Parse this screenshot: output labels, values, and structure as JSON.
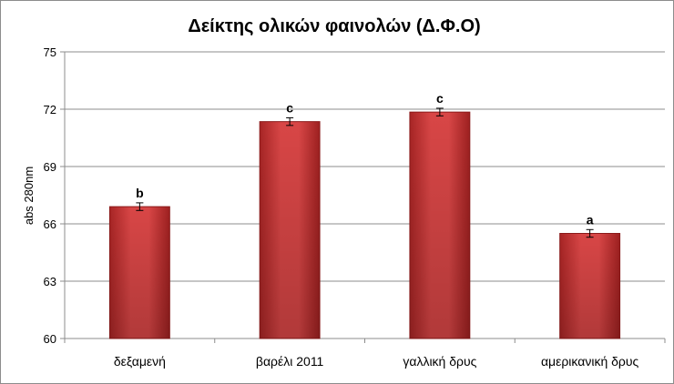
{
  "chart_data": {
    "type": "bar",
    "title": "Δείκτης ολικών φαινολών (Δ.Φ.Ο)",
    "xlabel": "",
    "ylabel": "abs 280nm",
    "categories": [
      "δεξαμενή",
      "βαρέλι 2011",
      "γαλλική δρυς",
      "αμερικανική δρυς"
    ],
    "values": [
      66.9,
      71.35,
      71.85,
      65.5
    ],
    "errors": [
      0.2,
      0.2,
      0.2,
      0.2
    ],
    "significance_letters": [
      "b",
      "c",
      "c",
      "a"
    ],
    "ylim": [
      60,
      75
    ],
    "yticks": [
      "60",
      "63",
      "66",
      "69",
      "72",
      "75"
    ],
    "grid": true,
    "legend": "none",
    "bar_color": "#cc3333",
    "bar_edge_color": "#8b1a1a"
  }
}
